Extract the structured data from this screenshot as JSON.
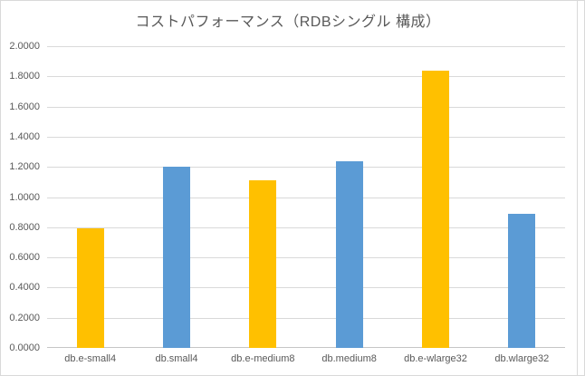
{
  "window": {
    "background": "#FFFFFF",
    "border_color": "#D9D9D9"
  },
  "chart_data": {
    "type": "bar",
    "title": "コストパフォーマンス（RDBシングル 構成）",
    "categories": [
      "db.e-small4",
      "db.small4",
      "db.e-medium8",
      "db.medium8",
      "db.e-wlarge32",
      "db.wlarge32"
    ],
    "values": [
      0.79,
      1.2,
      1.11,
      1.24,
      1.84,
      0.89
    ],
    "bar_colors": [
      "#FFC000",
      "#5B9BD5",
      "#FFC000",
      "#5B9BD5",
      "#FFC000",
      "#5B9BD5"
    ],
    "ylim": [
      0,
      2
    ],
    "yticks": [
      "0.0000",
      "0.2000",
      "0.4000",
      "0.6000",
      "0.8000",
      "1.0000",
      "1.2000",
      "1.4000",
      "1.6000",
      "1.8000",
      "2.0000"
    ],
    "xlabel": "",
    "ylabel": "",
    "grid": true,
    "legend": false,
    "styles": {
      "grid_color": "#D9D9D9",
      "axis_line_color": "#C6C6C6",
      "text_color": "#595959",
      "title_color": "#595959"
    }
  }
}
